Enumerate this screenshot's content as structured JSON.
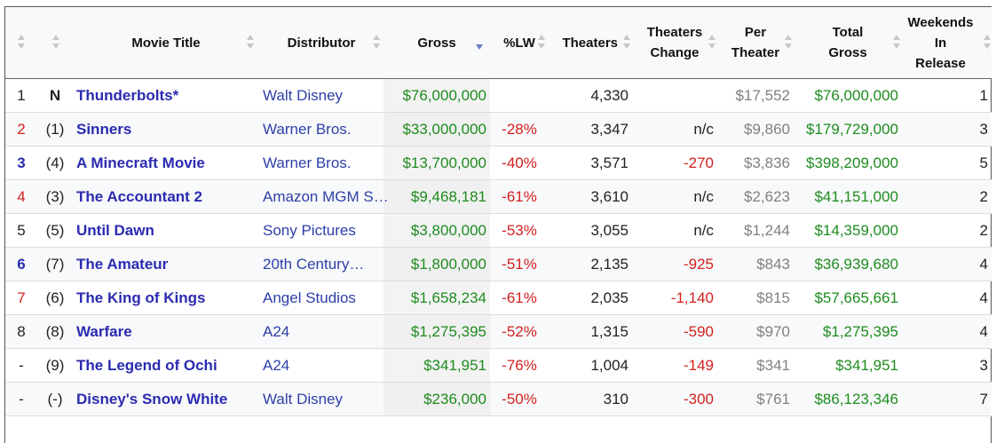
{
  "headers": {
    "title": "Movie Title",
    "distributor": "Distributor",
    "gross": "Gross",
    "lw": "%LW",
    "theaters": "Theaters",
    "theaters_change_1": "Theaters",
    "theaters_change_2": "Change",
    "per_theater_1": "Per",
    "per_theater_2": "Theater",
    "total_gross_1": "Total",
    "total_gross_2": "Gross",
    "weekends_1": "Weekends",
    "weekends_2": "In",
    "weekends_3": "Release"
  },
  "rows": [
    {
      "rank": "1",
      "last_week": "N",
      "title": "Thunderbolts*",
      "distributor": "Walt Disney",
      "gross": "$76,000,000",
      "lw": "",
      "theaters": "4,330",
      "change": "",
      "per_theater": "$17,552",
      "total_gross": "$76,000,000",
      "weekends": "1"
    },
    {
      "rank": "2",
      "last_week": "(1)",
      "title": "Sinners",
      "distributor": "Warner Bros.",
      "gross": "$33,000,000",
      "lw": "-28%",
      "theaters": "3,347",
      "change": "n/c",
      "per_theater": "$9,860",
      "total_gross": "$179,729,000",
      "weekends": "3"
    },
    {
      "rank": "3",
      "last_week": "(4)",
      "title": "A Minecraft Movie",
      "distributor": "Warner Bros.",
      "gross": "$13,700,000",
      "lw": "-40%",
      "theaters": "3,571",
      "change": "-270",
      "per_theater": "$3,836",
      "total_gross": "$398,209,000",
      "weekends": "5"
    },
    {
      "rank": "4",
      "last_week": "(3)",
      "title": "The Accountant 2",
      "distributor": "Amazon MGM S…",
      "gross": "$9,468,181",
      "lw": "-61%",
      "theaters": "3,610",
      "change": "n/c",
      "per_theater": "$2,623",
      "total_gross": "$41,151,000",
      "weekends": "2"
    },
    {
      "rank": "5",
      "last_week": "(5)",
      "title": "Until Dawn",
      "distributor": "Sony Pictures",
      "gross": "$3,800,000",
      "lw": "-53%",
      "theaters": "3,055",
      "change": "n/c",
      "per_theater": "$1,244",
      "total_gross": "$14,359,000",
      "weekends": "2"
    },
    {
      "rank": "6",
      "last_week": "(7)",
      "title": "The Amateur",
      "distributor": "20th Century…",
      "gross": "$1,800,000",
      "lw": "-51%",
      "theaters": "2,135",
      "change": "-925",
      "per_theater": "$843",
      "total_gross": "$36,939,680",
      "weekends": "4"
    },
    {
      "rank": "7",
      "last_week": "(6)",
      "title": "The King of Kings",
      "distributor": "Angel Studios",
      "gross": "$1,658,234",
      "lw": "-61%",
      "theaters": "2,035",
      "change": "-1,140",
      "per_theater": "$815",
      "total_gross": "$57,665,661",
      "weekends": "4"
    },
    {
      "rank": "8",
      "last_week": "(8)",
      "title": "Warfare",
      "distributor": "A24",
      "gross": "$1,275,395",
      "lw": "-52%",
      "theaters": "1,315",
      "change": "-590",
      "per_theater": "$970",
      "total_gross": "$1,275,395",
      "weekends": "4"
    },
    {
      "rank": "-",
      "last_week": "(9)",
      "title": "The Legend of Ochi",
      "distributor": "A24",
      "gross": "$341,951",
      "lw": "-76%",
      "theaters": "1,004",
      "change": "-149",
      "per_theater": "$341",
      "total_gross": "$341,951",
      "weekends": "3"
    },
    {
      "rank": "-",
      "last_week": "(-)",
      "title": "Disney's Snow White",
      "distributor": "Walt Disney",
      "gross": "$236,000",
      "lw": "-50%",
      "theaters": "310",
      "change": "-300",
      "per_theater": "$761",
      "total_gross": "$86,123,346",
      "weekends": "7"
    }
  ],
  "colors": {
    "link": "#2a2bb0",
    "gross_green": "#1e8b1e",
    "negative_red": "#d32020",
    "muted_gray": "#808080",
    "sort_active": "#6a7fc6"
  }
}
